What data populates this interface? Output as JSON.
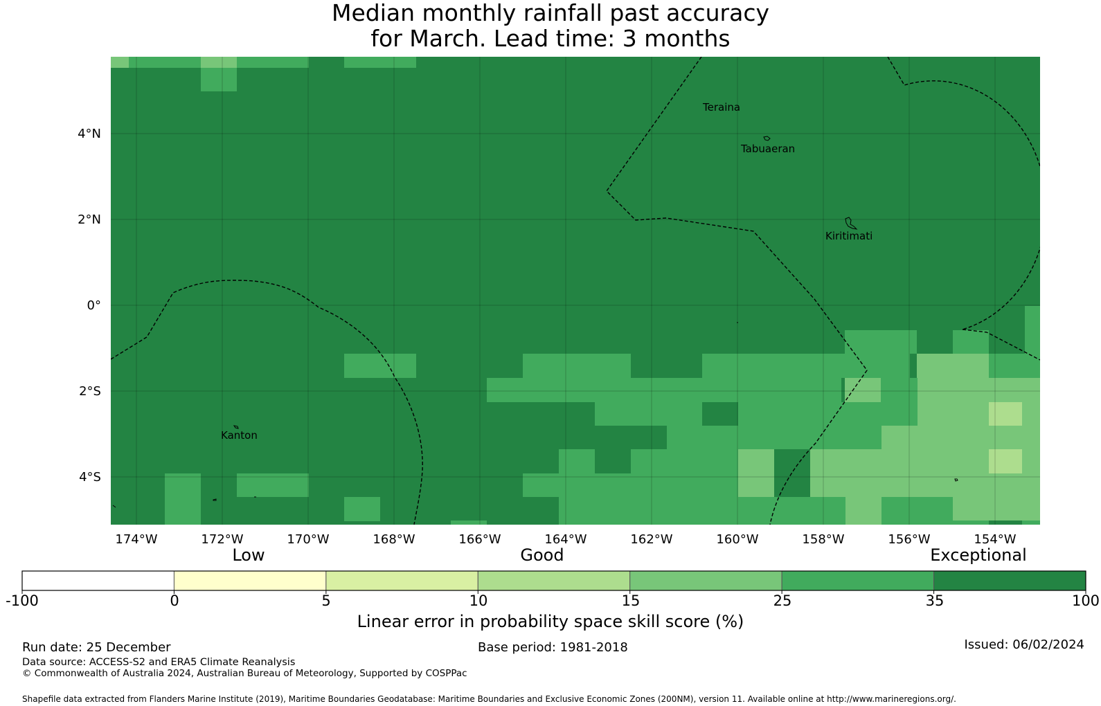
{
  "title": {
    "line1": "Median monthly rainfall past accuracy",
    "line2": "for March. Lead time: 3 months"
  },
  "map": {
    "lon_labels": [
      "174°W",
      "172°W",
      "170°W",
      "168°W",
      "166°W",
      "164°W",
      "162°W",
      "160°W",
      "158°W",
      "156°W",
      "154°W"
    ],
    "lat_labels": [
      "4°N",
      "2°N",
      "0°",
      "2°S",
      "4°S"
    ],
    "places": [
      "Teraina",
      "Tabuaeran",
      "Kiritimati",
      "Kanton"
    ]
  },
  "colorbar": {
    "categories": [
      "Low",
      "Good",
      "Exceptional"
    ],
    "ticks": [
      "-100",
      "0",
      "5",
      "10",
      "15",
      "25",
      "35",
      "100"
    ],
    "colors": [
      "#ffffff",
      "#ffffcc",
      "#d9f0a3",
      "#addd8e",
      "#78c679",
      "#41ab5d",
      "#238443"
    ],
    "label": "Linear error in probability space skill score (%)"
  },
  "footer": {
    "run_date": "Run date: 25 December",
    "base_period": "Base period: 1981-2018",
    "issued": "Issued: 06/02/2024",
    "data_source": "Data source: ACCESS-S2 and ERA5 Climate Reanalysis",
    "copyright": "© Commonwealth of Australia 2024, Australian Bureau of Meteorology, Supported by COSPPac",
    "shapefile": "Shapefile data extracted from Flanders Marine Institute (2019), Maritime Boundaries Geodatabase: Maritime Boundaries and Exclusive Economic Zones (200NM), version 11. Available online at http://www.marineregions.org/."
  }
}
